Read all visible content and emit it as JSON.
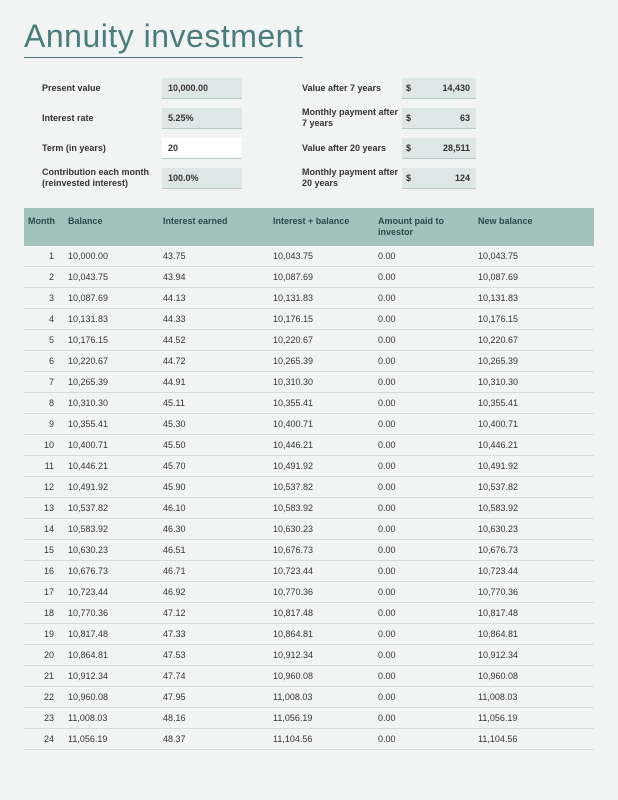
{
  "title": "Annuity investment",
  "inputs": {
    "present_value": {
      "label": "Present value",
      "value": "10,000.00"
    },
    "interest_rate": {
      "label": "Interest rate",
      "value": "5.25%"
    },
    "term": {
      "label": "Term (in years)",
      "value": "20"
    },
    "contribution": {
      "label": "Contribution each month (reinvested interest)",
      "value": "100.0%"
    }
  },
  "outputs": {
    "value_7": {
      "label": "Value after 7 years",
      "currency": "$",
      "value": "14,430"
    },
    "monthly_7": {
      "label": "Monthly payment after\n7 years",
      "currency": "$",
      "value": "63"
    },
    "value_20": {
      "label": "Value after 20 years",
      "currency": "$",
      "value": "28,511"
    },
    "monthly_20": {
      "label": "Monthly payment after 20 years",
      "currency": "$",
      "value": "124"
    }
  },
  "table": {
    "headers": {
      "month": "Month",
      "balance": "Balance",
      "interest_earned": "Interest earned",
      "interest_plus_balance": "Interest + balance",
      "amount_paid": "Amount paid to investor",
      "new_balance": "New balance"
    },
    "rows": [
      {
        "month": "1",
        "balance": "10,000.00",
        "interest": "43.75",
        "ib": "10,043.75",
        "paid": "0.00",
        "new": "10,043.75"
      },
      {
        "month": "2",
        "balance": "10,043.75",
        "interest": "43.94",
        "ib": "10,087.69",
        "paid": "0.00",
        "new": "10,087.69"
      },
      {
        "month": "3",
        "balance": "10,087.69",
        "interest": "44.13",
        "ib": "10,131.83",
        "paid": "0.00",
        "new": "10,131.83"
      },
      {
        "month": "4",
        "balance": "10,131.83",
        "interest": "44.33",
        "ib": "10,176.15",
        "paid": "0.00",
        "new": "10,176.15"
      },
      {
        "month": "5",
        "balance": "10,176.15",
        "interest": "44.52",
        "ib": "10,220.67",
        "paid": "0.00",
        "new": "10,220.67"
      },
      {
        "month": "6",
        "balance": "10,220.67",
        "interest": "44.72",
        "ib": "10,265.39",
        "paid": "0.00",
        "new": "10,265.39"
      },
      {
        "month": "7",
        "balance": "10,265.39",
        "interest": "44.91",
        "ib": "10,310.30",
        "paid": "0.00",
        "new": "10,310.30"
      },
      {
        "month": "8",
        "balance": "10,310.30",
        "interest": "45.11",
        "ib": "10,355.41",
        "paid": "0.00",
        "new": "10,355.41"
      },
      {
        "month": "9",
        "balance": "10,355.41",
        "interest": "45.30",
        "ib": "10,400.71",
        "paid": "0.00",
        "new": "10,400.71"
      },
      {
        "month": "10",
        "balance": "10,400.71",
        "interest": "45.50",
        "ib": "10,446.21",
        "paid": "0.00",
        "new": "10,446.21"
      },
      {
        "month": "11",
        "balance": "10,446.21",
        "interest": "45.70",
        "ib": "10,491.92",
        "paid": "0.00",
        "new": "10,491.92"
      },
      {
        "month": "12",
        "balance": "10,491.92",
        "interest": "45.90",
        "ib": "10,537.82",
        "paid": "0.00",
        "new": "10,537.82"
      },
      {
        "month": "13",
        "balance": "10,537.82",
        "interest": "46.10",
        "ib": "10,583.92",
        "paid": "0.00",
        "new": "10,583.92"
      },
      {
        "month": "14",
        "balance": "10,583.92",
        "interest": "46.30",
        "ib": "10,630.23",
        "paid": "0.00",
        "new": "10,630.23"
      },
      {
        "month": "15",
        "balance": "10,630.23",
        "interest": "46.51",
        "ib": "10,676.73",
        "paid": "0.00",
        "new": "10,676.73"
      },
      {
        "month": "16",
        "balance": "10,676.73",
        "interest": "46.71",
        "ib": "10,723.44",
        "paid": "0.00",
        "new": "10,723.44"
      },
      {
        "month": "17",
        "balance": "10,723.44",
        "interest": "46.92",
        "ib": "10,770.36",
        "paid": "0.00",
        "new": "10,770.36"
      },
      {
        "month": "18",
        "balance": "10,770.36",
        "interest": "47.12",
        "ib": "10,817.48",
        "paid": "0.00",
        "new": "10,817.48"
      },
      {
        "month": "19",
        "balance": "10,817.48",
        "interest": "47.33",
        "ib": "10,864.81",
        "paid": "0.00",
        "new": "10,864.81"
      },
      {
        "month": "20",
        "balance": "10,864.81",
        "interest": "47.53",
        "ib": "10,912.34",
        "paid": "0.00",
        "new": "10,912.34"
      },
      {
        "month": "21",
        "balance": "10,912.34",
        "interest": "47.74",
        "ib": "10,960.08",
        "paid": "0.00",
        "new": "10,960.08"
      },
      {
        "month": "22",
        "balance": "10,960.08",
        "interest": "47.95",
        "ib": "11,008.03",
        "paid": "0.00",
        "new": "11,008.03"
      },
      {
        "month": "23",
        "balance": "11,008.03",
        "interest": "48.16",
        "ib": "11,056.19",
        "paid": "0.00",
        "new": "11,056.19"
      },
      {
        "month": "24",
        "balance": "11,056.19",
        "interest": "48.37",
        "ib": "11,104.56",
        "paid": "0.00",
        "new": "11,104.56"
      }
    ]
  },
  "colors": {
    "page_bg": "#f2f4f3",
    "title": "#4a7c7c",
    "header_bg": "#a3c2bc",
    "input_bg": "#dde8e6",
    "row_border": "#d8dcd9"
  }
}
